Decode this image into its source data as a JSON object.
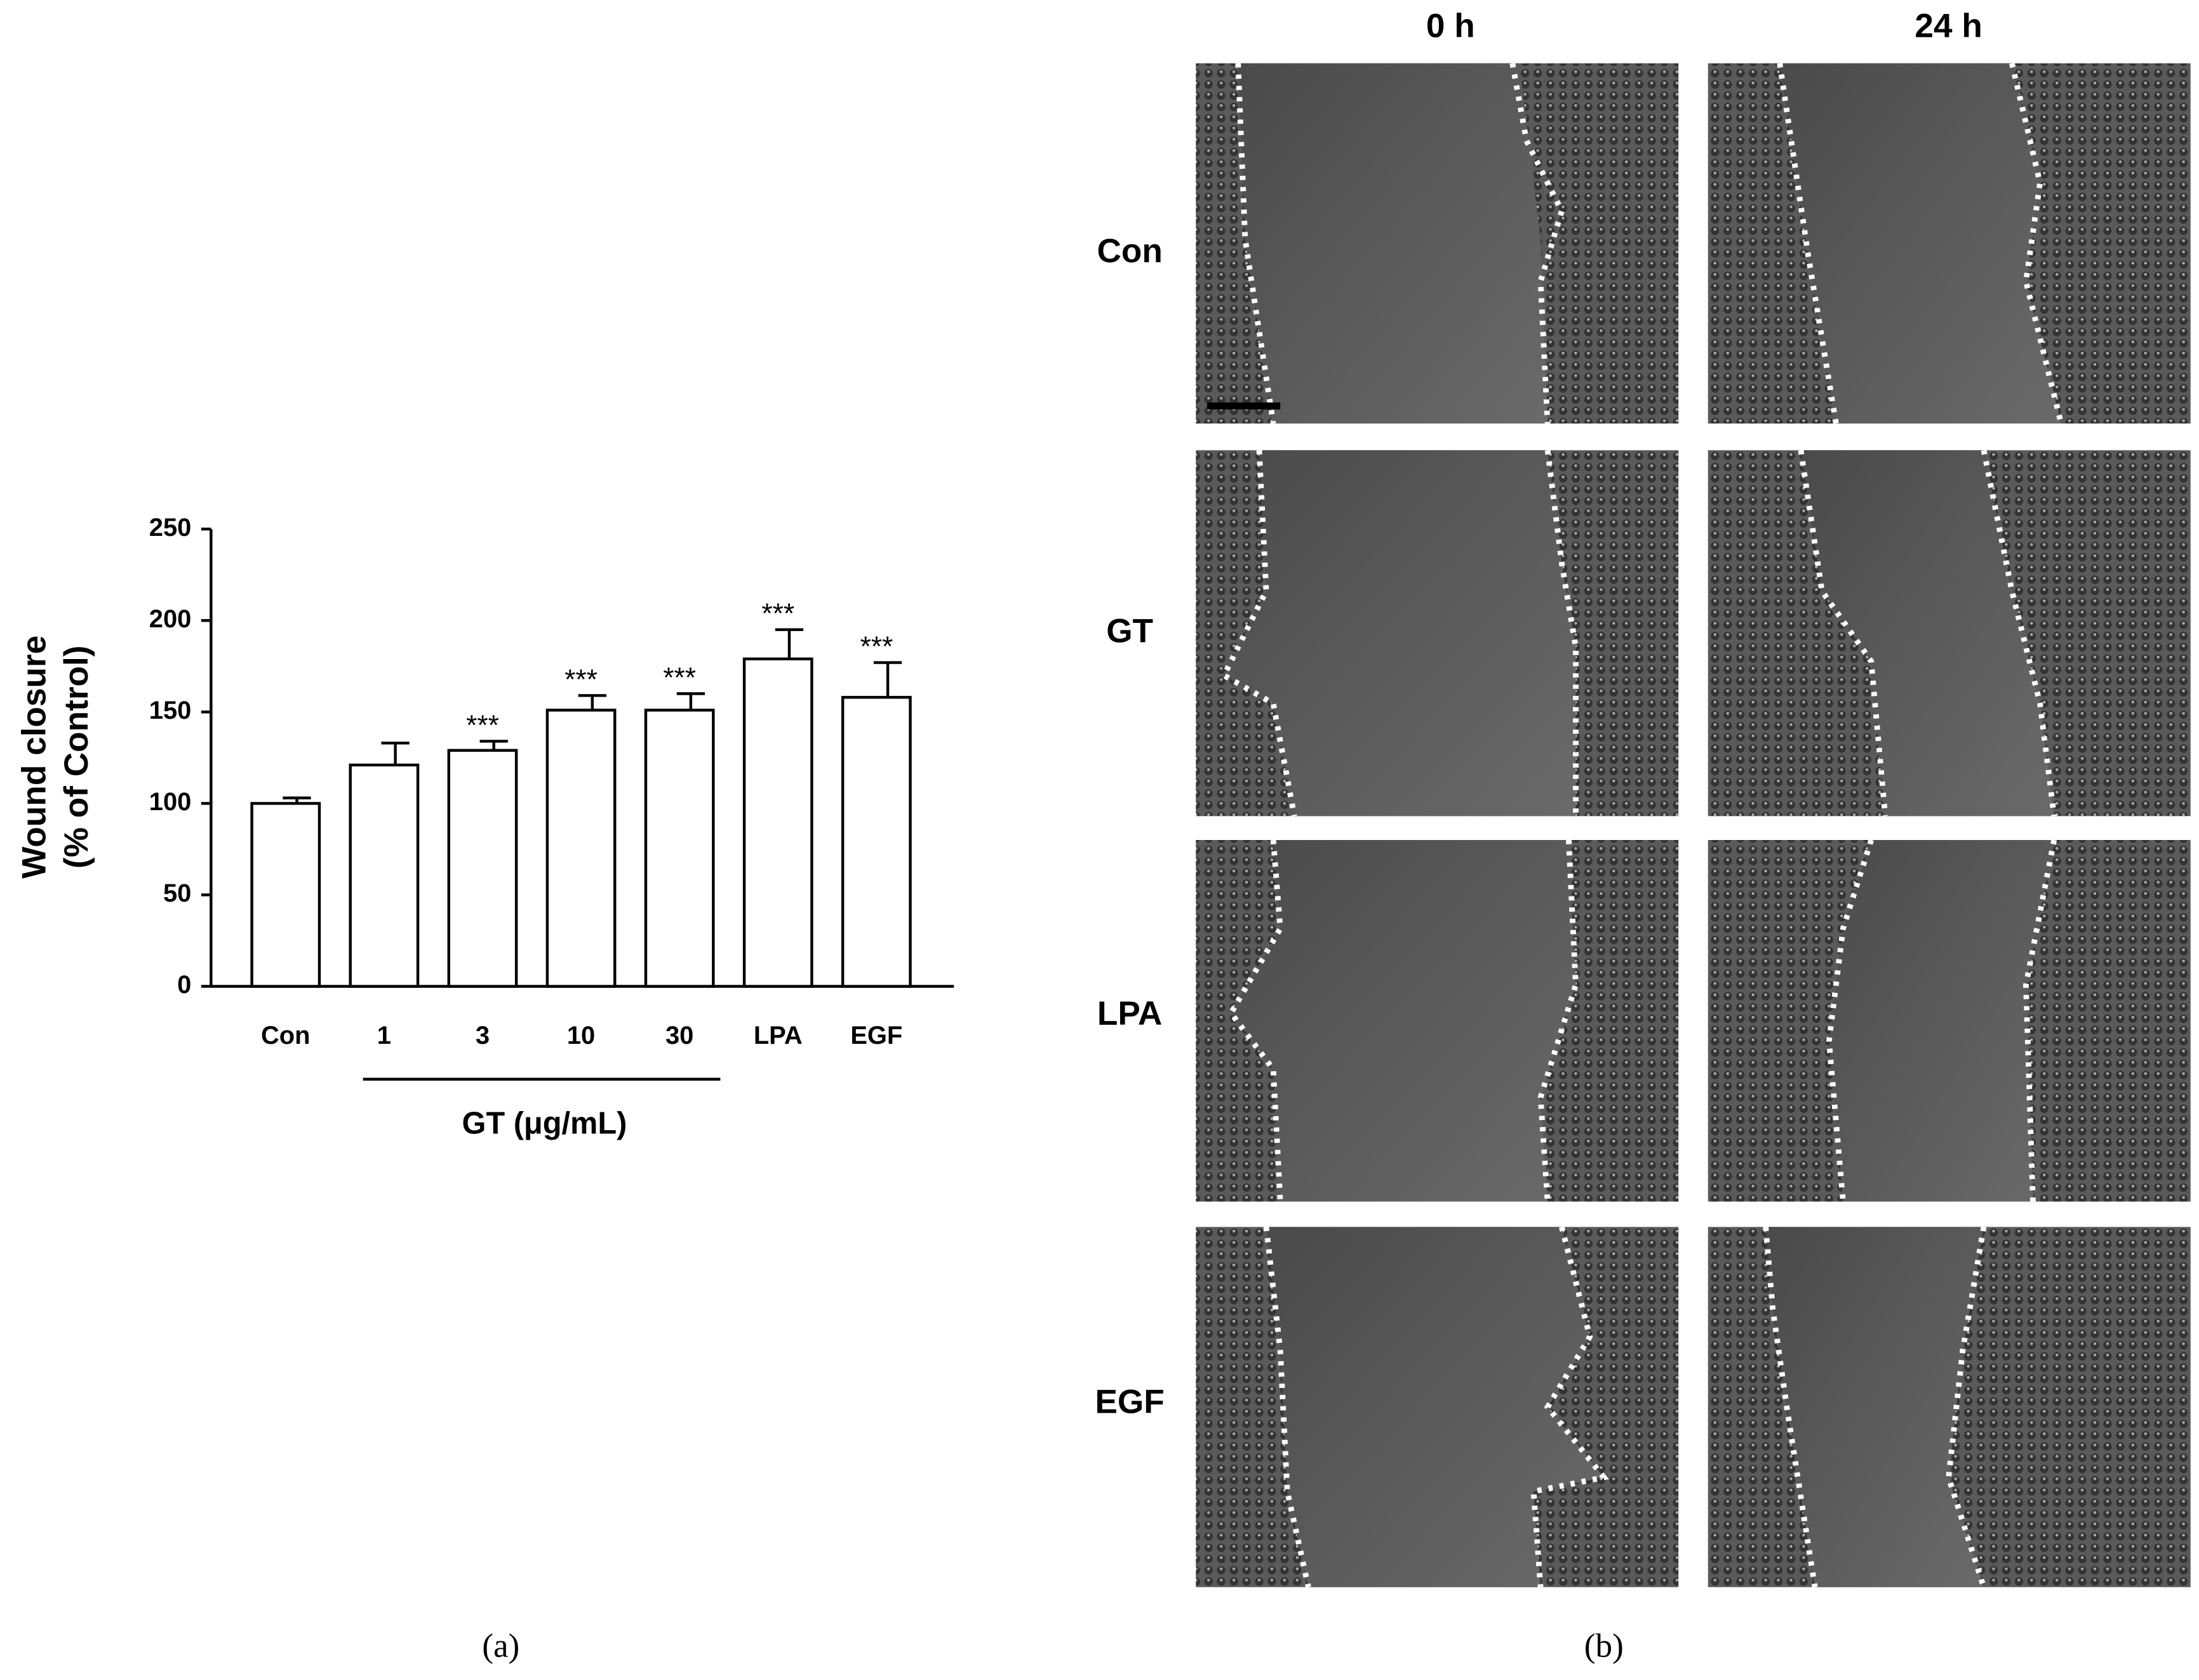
{
  "chart_data": {
    "type": "bar",
    "ylabel": [
      "Wound closure",
      "(% of Control)"
    ],
    "categories": [
      "Con",
      "1",
      "3",
      "10",
      "30",
      "LPA",
      "EGF"
    ],
    "values": [
      100,
      121,
      129,
      151,
      151,
      179,
      158
    ],
    "errors": [
      3,
      12,
      5,
      8,
      9,
      16,
      19
    ],
    "significance": [
      null,
      null,
      "***",
      "***",
      "***",
      "***",
      "***"
    ],
    "group_label": "GT (μg/mL)",
    "color": "#ffffff",
    "ylim": [
      0,
      250
    ],
    "yticks": [
      0,
      50,
      100,
      150,
      200,
      250
    ],
    "grid": false,
    "panel_label": "(a)"
  },
  "micrographs": {
    "columns": [
      "0 h",
      "24 h"
    ],
    "rows": [
      "Con",
      "GT",
      "LPA",
      "EGF"
    ],
    "panel_label": "(b)"
  }
}
